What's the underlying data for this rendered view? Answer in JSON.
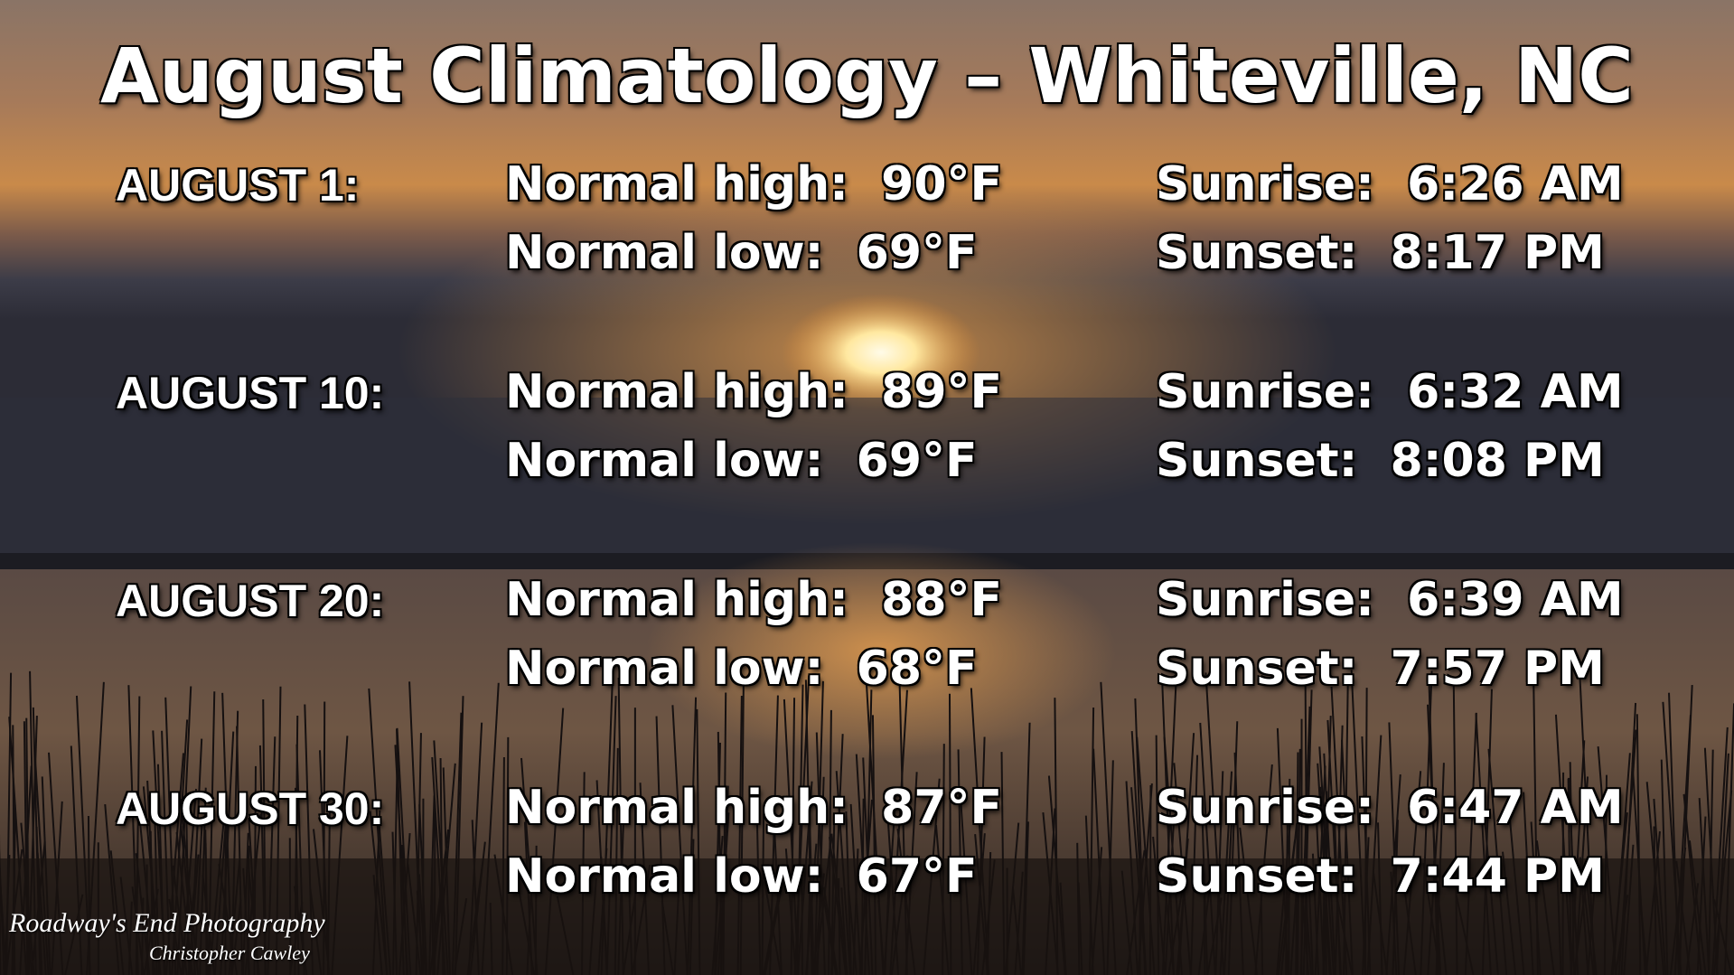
{
  "title": "August Climatology – Whiteville, NC",
  "rows": [
    {
      "date": "AUGUST 1:",
      "high": "Normal high:  90°F",
      "low": "Normal low:  69°F",
      "sunrise": "Sunrise:  6:26 AM",
      "sunset": "Sunset:  8:17 PM"
    },
    {
      "date": "AUGUST 10:",
      "high": "Normal high:  89°F",
      "low": "Normal low:  69°F",
      "sunrise": "Sunrise:  6:32 AM",
      "sunset": "Sunset:  8:08 PM"
    },
    {
      "date": "AUGUST 20:",
      "high": "Normal high:  88°F",
      "low": "Normal low:  68°F",
      "sunrise": "Sunrise:  6:39 AM",
      "sunset": "Sunset:  7:57 PM"
    },
    {
      "date": "AUGUST 30:",
      "high": "Normal high:  87°F",
      "low": "Normal low:  67°F",
      "sunrise": "Sunrise:  6:47 AM",
      "sunset": "Sunset:  7:44 PM"
    }
  ],
  "credit": {
    "studio": "Roadway's End Photography",
    "photographer": "Christopher Cawley"
  }
}
